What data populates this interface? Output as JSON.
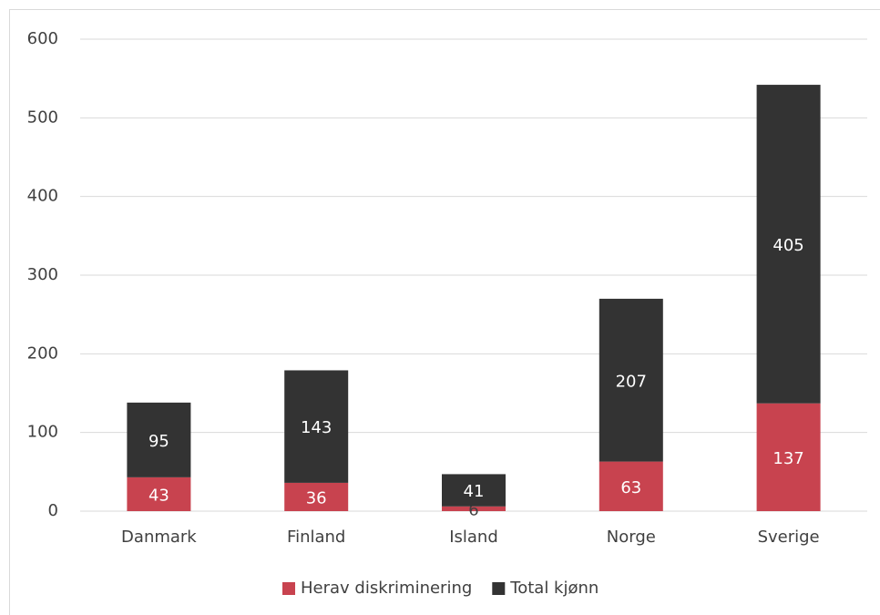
{
  "chart_data": {
    "type": "stacked_bar",
    "categories": [
      "Danmark",
      "Finland",
      "Island",
      "Norge",
      "Sverige"
    ],
    "series": [
      {
        "name": "Herav diskriminering",
        "color": "#c8434f",
        "values": [
          43,
          36,
          6,
          63,
          137
        ]
      },
      {
        "name": "Total kjønn",
        "color": "#333333",
        "values": [
          95,
          143,
          41,
          207,
          405
        ]
      }
    ],
    "ylim": [
      0,
      600
    ],
    "yticks": [
      0,
      100,
      200,
      300,
      400,
      500,
      600
    ],
    "grid": true,
    "legend": "bottom"
  }
}
